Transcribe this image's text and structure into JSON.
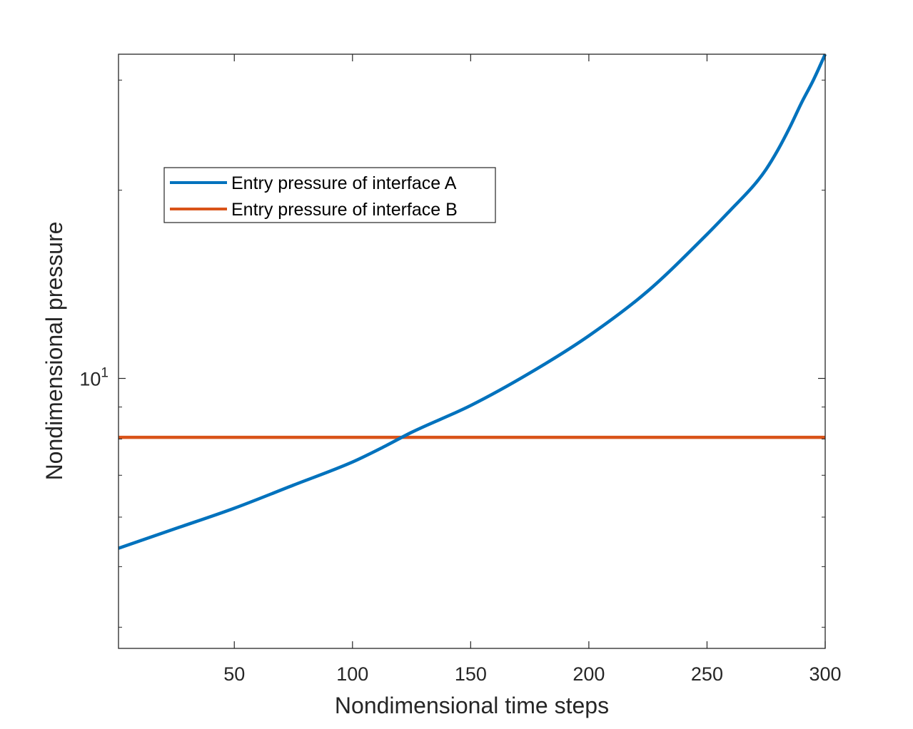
{
  "chart_data": {
    "type": "line",
    "title": "",
    "xlabel": "Nondimensional time steps",
    "ylabel": "Nondimensional pressure",
    "xscale": "linear",
    "yscale": "log",
    "xlim": [
      1,
      300
    ],
    "ylim": [
      3.7,
      33
    ],
    "grid": false,
    "legend_position": "upper-left",
    "xticks": [
      50,
      100,
      150,
      200,
      250,
      300
    ],
    "xtick_labels": [
      "50",
      "100",
      "150",
      "200",
      "250",
      "300"
    ],
    "yticks": [
      10
    ],
    "ytick_labels": [
      {
        "base": "10",
        "exp": "1"
      }
    ],
    "y_minor_ticks": [
      4,
      5,
      6,
      7,
      8,
      9,
      20,
      30
    ],
    "series": [
      {
        "name": "Entry pressure of interface A",
        "color": "#0072BD",
        "x": [
          1,
          25,
          50,
          75,
          100,
          114,
          125,
          150,
          175,
          200,
          225,
          250,
          260,
          270,
          275,
          280,
          285,
          290,
          295,
          300
        ],
        "y": [
          5.35,
          5.75,
          6.2,
          6.75,
          7.35,
          7.8,
          8.2,
          9.05,
          10.2,
          11.7,
          13.8,
          17.0,
          18.6,
          20.4,
          21.6,
          23.2,
          25.2,
          27.6,
          30.0,
          33.0
        ]
      },
      {
        "name": "Entry pressure of interface B",
        "color": "#D95319",
        "x": [
          1,
          300
        ],
        "y": [
          8.05,
          8.05
        ]
      }
    ]
  }
}
